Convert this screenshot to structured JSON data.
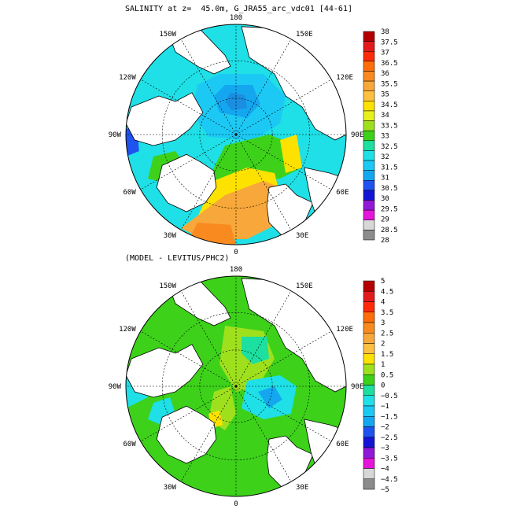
{
  "panels": [
    {
      "title": "SALINITY at z=  45.0m, G_JRA55_arc_vdc01 [44-61]",
      "lon_labels": {
        "top": "180",
        "tl": "150W",
        "tr": "150E",
        "ul": "120W",
        "ur": "120E",
        "l": "90W",
        "r": "90E",
        "ll": "60W",
        "lr": "60E",
        "bl": "30W",
        "br": "30E",
        "bottom": "0"
      },
      "colorbar": {
        "labels": [
          "38",
          "37.5",
          "37",
          "36.5",
          "36",
          "35.5",
          "35",
          "34.5",
          "34",
          "33.5",
          "33",
          "32.5",
          "32",
          "31.5",
          "31",
          "30.5",
          "30",
          "29.5",
          "29",
          "28.5",
          "28"
        ],
        "colors": [
          "#b40000",
          "#e31a1c",
          "#fe2a0a",
          "#fe6d0a",
          "#f88a1f",
          "#f8a83a",
          "#fdc040",
          "#fde200",
          "#e6f01c",
          "#9fe01d",
          "#3dd11a",
          "#1cdfa0",
          "#1ee0e6",
          "#1cc9f5",
          "#14a7f0",
          "#1f53f0",
          "#1414d6",
          "#8f18d9",
          "#e415d9",
          "#d7d7d7",
          "#8c8c8c"
        ]
      },
      "map_colors": {
        "bg": "#1ee0e6",
        "deep": "#14a7f0",
        "core": "#1cc9f5",
        "fresh": "#1f53f0",
        "green": "#3dd11a",
        "lgreen": "#9fe01d",
        "yellow": "#fde200",
        "orange": "#f8a83a",
        "dorange": "#f88a1f",
        "teal": "#1cdfa0"
      }
    },
    {
      "title": "(MODEL - LEVITUS/PHC2)",
      "lon_labels": {
        "top": "180",
        "tl": "150W",
        "tr": "150E",
        "ul": "120W",
        "ur": "120E",
        "l": "90W",
        "r": "90E",
        "ll": "60W",
        "lr": "60E",
        "bl": "30W",
        "br": "30E",
        "bottom": "0"
      },
      "colorbar": {
        "labels": [
          "5",
          "4.5",
          "4",
          "3.5",
          "3",
          "2.5",
          "2",
          "1.5",
          "1",
          "0.5",
          "0",
          "−0.5",
          "−1",
          "−1.5",
          "−2",
          "−2.5",
          "−3",
          "−3.5",
          "−4",
          "−4.5",
          "−5"
        ],
        "colors": [
          "#b40000",
          "#e31a1c",
          "#fe2a0a",
          "#fe6d0a",
          "#f88a1f",
          "#f8a83a",
          "#fdc040",
          "#fde200",
          "#9fe01d",
          "#3dd11a",
          "#1cdfa0",
          "#1ee0e6",
          "#1cc9f5",
          "#14a7f0",
          "#1f53f0",
          "#1414d6",
          "#8f18d9",
          "#e415d9",
          "#d7d7d7",
          "#8c8c8c"
        ]
      },
      "map_colors": {
        "bg": "#3dd11a",
        "lgreen": "#9fe01d",
        "teal": "#1cdfa0",
        "cyan": "#1ee0e6",
        "yellow": "#fde200",
        "blue": "#14a7f0"
      }
    }
  ]
}
